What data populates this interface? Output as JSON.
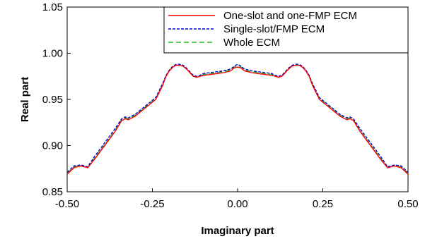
{
  "chart_data": {
    "type": "line",
    "xlabel": "Imaginary part",
    "ylabel": "Real part",
    "xlim": [
      -0.5,
      0.5
    ],
    "ylim": [
      0.85,
      1.05
    ],
    "xticks": [
      -0.5,
      -0.25,
      0.0,
      0.25,
      0.5
    ],
    "xtick_labels": [
      "-0.50",
      "-0.25",
      "0.00",
      "0.25",
      "0.50"
    ],
    "yticks": [
      0.85,
      0.9,
      0.95,
      1.0,
      1.05
    ],
    "ytick_labels": [
      "0.85",
      "0.90",
      "0.95",
      "1.00",
      "1.05"
    ],
    "grid": false,
    "legend_position": "top-right",
    "series": [
      {
        "name": "One-slot and one-FMP ECM",
        "color": "#ff0000",
        "dash": "solid",
        "x": [
          -0.5,
          -0.48,
          -0.46,
          -0.44,
          -0.42,
          -0.4,
          -0.38,
          -0.36,
          -0.34,
          -0.33,
          -0.32,
          -0.3,
          -0.28,
          -0.26,
          -0.24,
          -0.22,
          -0.21,
          -0.2,
          -0.19,
          -0.18,
          -0.17,
          -0.16,
          -0.15,
          -0.14,
          -0.13,
          -0.12,
          -0.11,
          -0.1,
          -0.08,
          -0.06,
          -0.04,
          -0.02,
          -0.01,
          0.0,
          0.01,
          0.02,
          0.04,
          0.06,
          0.08,
          0.1,
          0.11,
          0.12,
          0.13,
          0.14,
          0.15,
          0.16,
          0.17,
          0.18,
          0.19,
          0.2,
          0.21,
          0.22,
          0.24,
          0.26,
          0.28,
          0.3,
          0.32,
          0.33,
          0.34,
          0.36,
          0.38,
          0.4,
          0.42,
          0.44,
          0.46,
          0.48,
          0.5
        ],
        "y": [
          0.869,
          0.876,
          0.878,
          0.876,
          0.885,
          0.895,
          0.905,
          0.915,
          0.927,
          0.929,
          0.928,
          0.932,
          0.938,
          0.944,
          0.95,
          0.965,
          0.975,
          0.981,
          0.985,
          0.987,
          0.987,
          0.986,
          0.983,
          0.979,
          0.975,
          0.974,
          0.975,
          0.976,
          0.977,
          0.978,
          0.979,
          0.981,
          0.984,
          0.985,
          0.984,
          0.981,
          0.979,
          0.978,
          0.977,
          0.976,
          0.975,
          0.974,
          0.975,
          0.979,
          0.983,
          0.986,
          0.987,
          0.987,
          0.985,
          0.981,
          0.975,
          0.965,
          0.95,
          0.944,
          0.938,
          0.932,
          0.928,
          0.929,
          0.927,
          0.915,
          0.905,
          0.895,
          0.885,
          0.876,
          0.878,
          0.876,
          0.869
        ]
      },
      {
        "name": "Single-slot/FMP ECM",
        "color": "#0000cc",
        "dash": "short-dash",
        "x": [
          -0.5,
          -0.48,
          -0.46,
          -0.44,
          -0.42,
          -0.4,
          -0.38,
          -0.36,
          -0.34,
          -0.33,
          -0.32,
          -0.3,
          -0.28,
          -0.26,
          -0.24,
          -0.22,
          -0.21,
          -0.2,
          -0.19,
          -0.18,
          -0.17,
          -0.16,
          -0.15,
          -0.14,
          -0.13,
          -0.12,
          -0.11,
          -0.1,
          -0.08,
          -0.06,
          -0.04,
          -0.02,
          -0.01,
          0.0,
          0.01,
          0.02,
          0.04,
          0.06,
          0.08,
          0.1,
          0.11,
          0.12,
          0.13,
          0.14,
          0.15,
          0.16,
          0.17,
          0.18,
          0.19,
          0.2,
          0.21,
          0.22,
          0.24,
          0.26,
          0.28,
          0.3,
          0.32,
          0.33,
          0.34,
          0.36,
          0.38,
          0.4,
          0.42,
          0.44,
          0.46,
          0.48,
          0.5
        ],
        "y": [
          0.871,
          0.878,
          0.879,
          0.877,
          0.888,
          0.898,
          0.908,
          0.918,
          0.929,
          0.931,
          0.93,
          0.934,
          0.94,
          0.946,
          0.952,
          0.967,
          0.976,
          0.982,
          0.986,
          0.988,
          0.988,
          0.987,
          0.984,
          0.98,
          0.976,
          0.975,
          0.976,
          0.978,
          0.979,
          0.98,
          0.981,
          0.983,
          0.986,
          0.988,
          0.986,
          0.983,
          0.981,
          0.98,
          0.979,
          0.978,
          0.976,
          0.975,
          0.976,
          0.98,
          0.984,
          0.987,
          0.988,
          0.988,
          0.986,
          0.982,
          0.976,
          0.967,
          0.952,
          0.946,
          0.94,
          0.934,
          0.93,
          0.931,
          0.929,
          0.918,
          0.908,
          0.898,
          0.888,
          0.877,
          0.879,
          0.878,
          0.871
        ]
      },
      {
        "name": "Whole ECM",
        "color": "#22bb22",
        "dash": "long-dash",
        "x": [
          -0.5,
          -0.48,
          -0.46,
          -0.44,
          -0.42,
          -0.4,
          -0.38,
          -0.36,
          -0.34,
          -0.33,
          -0.32,
          -0.3,
          -0.28,
          -0.26,
          -0.24,
          -0.22,
          -0.21,
          -0.2,
          -0.19,
          -0.18,
          -0.17,
          -0.16,
          -0.15,
          -0.14,
          -0.13,
          -0.12,
          -0.11,
          -0.1,
          -0.08,
          -0.06,
          -0.04,
          -0.02,
          -0.01,
          0.0,
          0.01,
          0.02,
          0.04,
          0.06,
          0.08,
          0.1,
          0.11,
          0.12,
          0.13,
          0.14,
          0.15,
          0.16,
          0.17,
          0.18,
          0.19,
          0.2,
          0.21,
          0.22,
          0.24,
          0.26,
          0.28,
          0.3,
          0.32,
          0.33,
          0.34,
          0.36,
          0.38,
          0.4,
          0.42,
          0.44,
          0.46,
          0.48,
          0.5
        ],
        "y": [
          0.87,
          0.877,
          0.878,
          0.876,
          0.886,
          0.896,
          0.906,
          0.916,
          0.928,
          0.93,
          0.929,
          0.933,
          0.939,
          0.945,
          0.951,
          0.966,
          0.975,
          0.981,
          0.985,
          0.987,
          0.987,
          0.986,
          0.983,
          0.979,
          0.975,
          0.974,
          0.975,
          0.977,
          0.978,
          0.979,
          0.98,
          0.982,
          0.985,
          0.986,
          0.985,
          0.982,
          0.98,
          0.979,
          0.978,
          0.977,
          0.975,
          0.974,
          0.975,
          0.979,
          0.983,
          0.986,
          0.987,
          0.987,
          0.985,
          0.981,
          0.975,
          0.966,
          0.951,
          0.945,
          0.939,
          0.933,
          0.929,
          0.93,
          0.928,
          0.916,
          0.906,
          0.896,
          0.886,
          0.876,
          0.878,
          0.877,
          0.87
        ]
      }
    ]
  }
}
